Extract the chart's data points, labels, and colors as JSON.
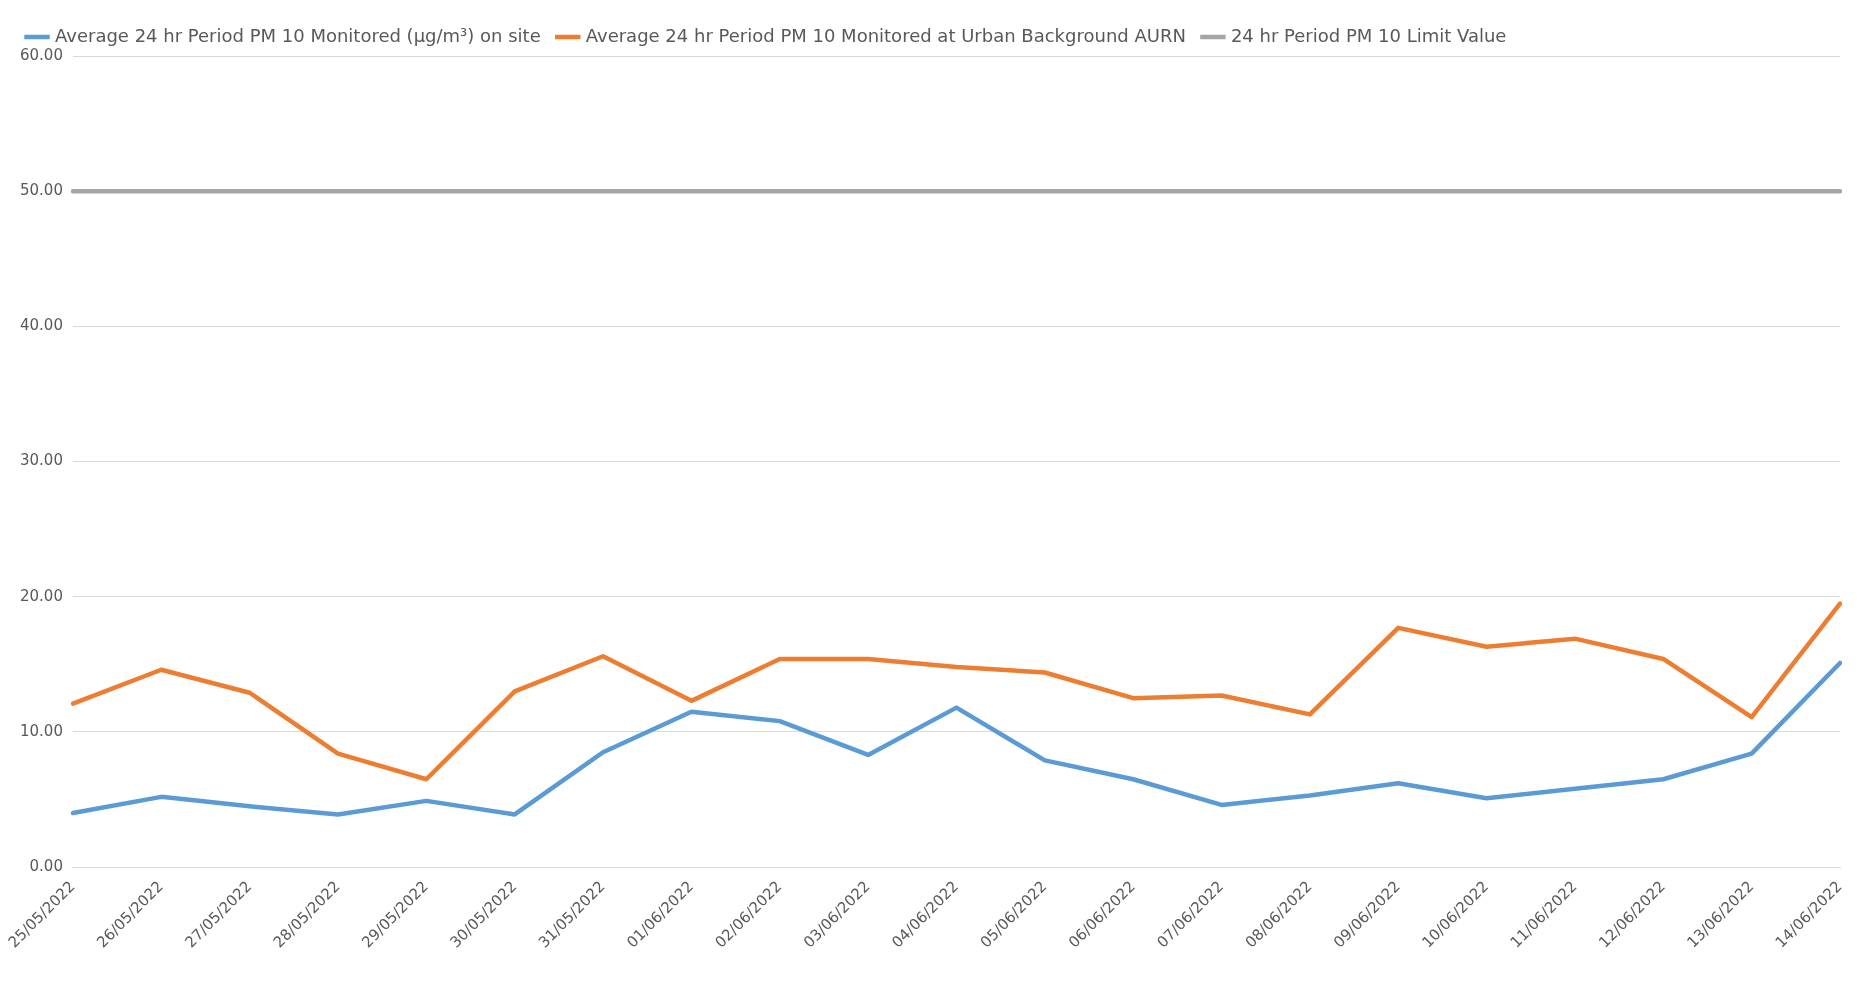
{
  "chart_data": {
    "type": "line",
    "categories": [
      "25/05/2022",
      "26/05/2022",
      "27/05/2022",
      "28/05/2022",
      "29/05/2022",
      "30/05/2022",
      "31/05/2022",
      "01/06/2022",
      "02/06/2022",
      "03/06/2022",
      "04/06/2022",
      "05/06/2022",
      "06/06/2022",
      "07/06/2022",
      "08/06/2022",
      "09/06/2022",
      "10/06/2022",
      "11/06/2022",
      "12/06/2022",
      "13/06/2022",
      "14/06/2022"
    ],
    "series": [
      {
        "name": "Average 24 hr Period PM 10 Monitored (µg/m³) on site",
        "color": "#5b9bd5",
        "values": [
          4.0,
          5.2,
          4.5,
          3.9,
          4.9,
          3.9,
          8.5,
          11.5,
          10.8,
          8.3,
          11.8,
          7.9,
          6.5,
          4.6,
          5.3,
          6.2,
          5.1,
          5.8,
          6.5,
          8.4,
          15.1
        ]
      },
      {
        "name": "Average 24 hr Period PM 10 Monitored at Urban Background AURN",
        "color": "#ed7d31",
        "values": [
          12.1,
          14.6,
          12.9,
          8.4,
          6.5,
          13.0,
          15.6,
          12.3,
          15.4,
          15.4,
          14.8,
          14.4,
          12.5,
          12.7,
          11.3,
          17.7,
          16.3,
          16.9,
          15.4,
          11.1,
          19.5
        ]
      },
      {
        "name": "24 hr Period PM 10 Limit Value",
        "color": "#a5a5a5",
        "values": [
          50,
          50,
          50,
          50,
          50,
          50,
          50,
          50,
          50,
          50,
          50,
          50,
          50,
          50,
          50,
          50,
          50,
          50,
          50,
          50,
          50
        ]
      }
    ],
    "ylim": [
      0,
      60
    ],
    "yticks": [
      {
        "value": 0,
        "label": "0.00"
      },
      {
        "value": 10,
        "label": "10.00"
      },
      {
        "value": 20,
        "label": "20.00"
      },
      {
        "value": 30,
        "label": "30.00"
      },
      {
        "value": 40,
        "label": "40.00"
      },
      {
        "value": 50,
        "label": "50.00"
      },
      {
        "value": 60,
        "label": "60.00"
      }
    ],
    "grid": "y",
    "legend": "top left",
    "marker": "none",
    "line_style": "solid"
  }
}
